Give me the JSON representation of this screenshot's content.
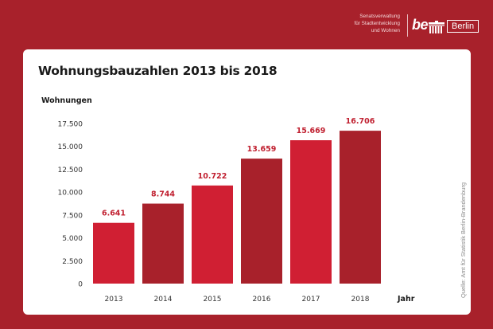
{
  "header": {
    "department_lines": [
      "Senatsverwaltung",
      "für Stadtentwicklung",
      "und Wohnen"
    ],
    "logo_be": "be",
    "logo_berlin": "Berlin",
    "logo_icon": "brandenburg-gate-icon"
  },
  "source_note": "Quelle: Amt für Statistik Berlin-Brandenburg",
  "colors": {
    "background": "#a8212b",
    "bar_bright": "#d01f33",
    "bar_dark": "#a8212b",
    "label": "#c01f2f"
  },
  "chart_data": {
    "type": "bar",
    "title": "Wohnungsbauzahlen 2013 bis 2018",
    "ylabel": "Wohnungen",
    "xlabel": "Jahr",
    "categories": [
      "2013",
      "2014",
      "2015",
      "2016",
      "2017",
      "2018"
    ],
    "values": [
      6641,
      8744,
      10722,
      13659,
      15669,
      16706
    ],
    "value_labels": [
      "6.641",
      "8.744",
      "10.722",
      "13.659",
      "15.669",
      "16.706"
    ],
    "ylim": [
      0,
      17500
    ],
    "yticks": [
      0,
      2500,
      5000,
      7500,
      10000,
      12500,
      15000,
      17500
    ],
    "ytick_labels": [
      "0",
      "2.500",
      "5.000",
      "7.500",
      "10.000",
      "12.500",
      "15.000",
      "17.500"
    ],
    "grid": false,
    "legend": "none"
  }
}
